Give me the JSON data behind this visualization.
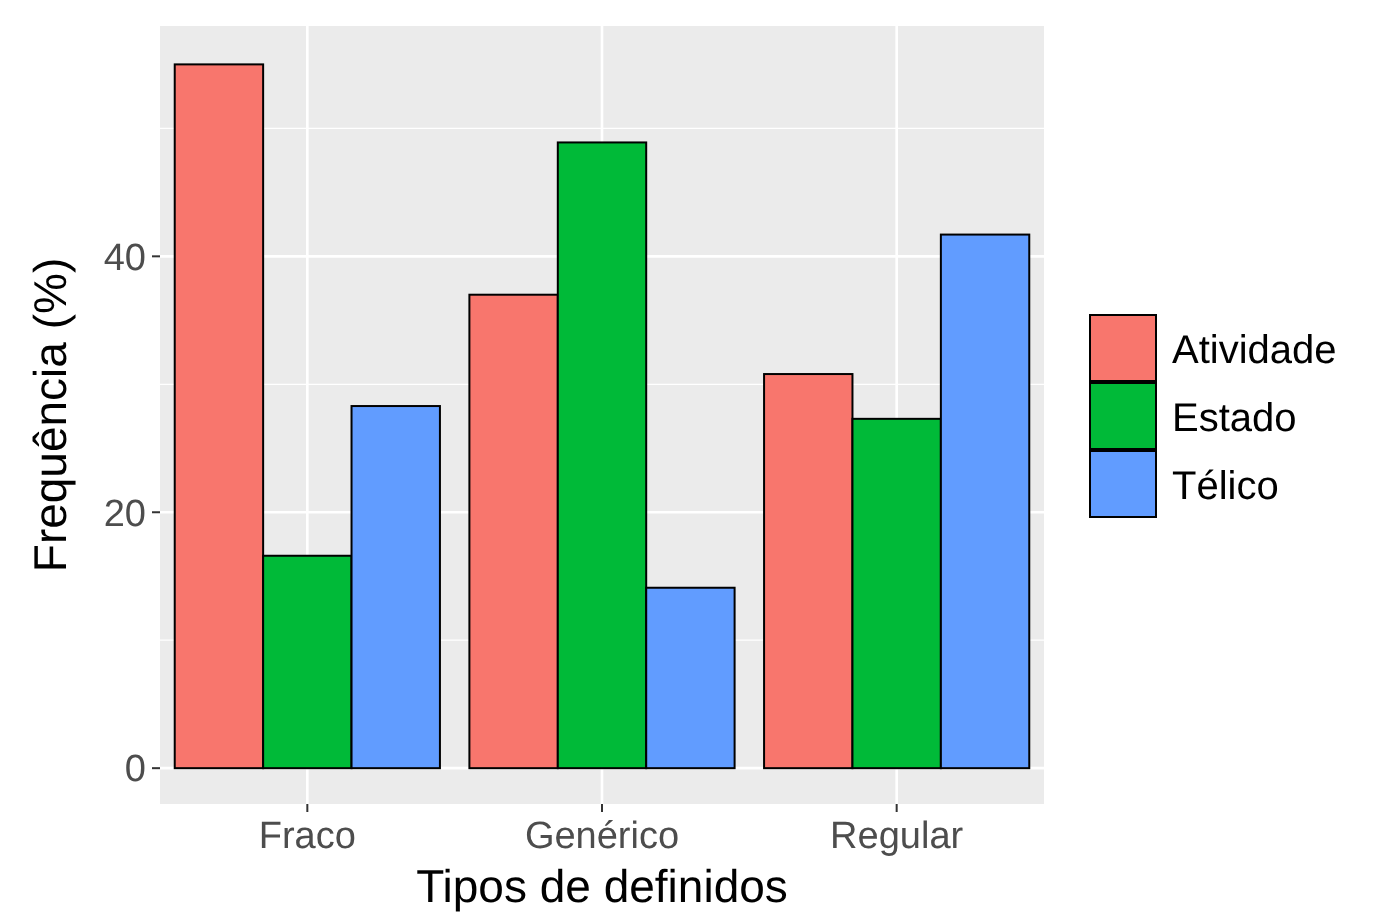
{
  "chart_data": {
    "type": "bar",
    "xlabel": "Tipos de definidos",
    "ylabel": "Frequência (%)",
    "categories": [
      "Fraco",
      "Genérico",
      "Regular"
    ],
    "series": [
      {
        "name": "Atividade",
        "color": "#f8766d",
        "values": [
          55.0,
          37.0,
          30.8
        ]
      },
      {
        "name": "Estado",
        "color": "#00ba38",
        "values": [
          16.6,
          48.9,
          27.3
        ]
      },
      {
        "name": "Télico",
        "color": "#619cff",
        "values": [
          28.3,
          14.1,
          41.7
        ]
      }
    ],
    "ylim": [
      -2.8,
      58
    ],
    "yticks": [
      0,
      20,
      40
    ],
    "grid": true,
    "legend": "right"
  }
}
